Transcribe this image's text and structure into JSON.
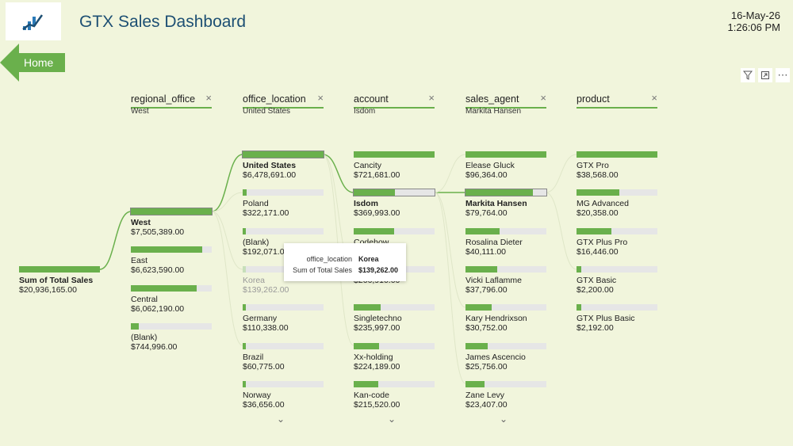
{
  "header": {
    "title": "GTX Sales Dashboard",
    "date": "16-May-26",
    "time": "1:26:06 PM",
    "home_label": "Home"
  },
  "toolbar": {
    "icons": [
      "filter-icon",
      "focus-mode-icon",
      "more-options-icon"
    ]
  },
  "tree": {
    "root": {
      "label": "Sum of Total Sales",
      "value": "$20,936,165.00"
    },
    "columns": [
      {
        "header": "regional_office",
        "selected": "West",
        "nodes": [
          {
            "label": "West",
            "value": "$7,505,389.00",
            "fill": 1.0,
            "state": "sel"
          },
          {
            "label": "East",
            "value": "$6,623,590.00",
            "fill": 0.88,
            "state": ""
          },
          {
            "label": "Central",
            "value": "$6,062,190.00",
            "fill": 0.81,
            "state": ""
          },
          {
            "label": "(Blank)",
            "value": "$744,996.00",
            "fill": 0.1,
            "state": ""
          }
        ]
      },
      {
        "header": "office_location",
        "selected": "United States",
        "nodes": [
          {
            "label": "United States",
            "value": "$6,478,691.00",
            "fill": 1.0,
            "state": "sel"
          },
          {
            "label": "Poland",
            "value": "$322,171.00",
            "fill": 0.05,
            "state": ""
          },
          {
            "label": "(Blank)",
            "value": "$192,071.00",
            "fill": 0.03,
            "state": ""
          },
          {
            "label": "Korea",
            "value": "$139,262.00",
            "fill": 0.02,
            "state": "dim"
          },
          {
            "label": "Germany",
            "value": "$110,338.00",
            "fill": 0.02,
            "state": ""
          },
          {
            "label": "Brazil",
            "value": "$60,775.00",
            "fill": 0.01,
            "state": ""
          },
          {
            "label": "Norway",
            "value": "$36,656.00",
            "fill": 0.006,
            "state": ""
          }
        ]
      },
      {
        "header": "account",
        "selected": "Isdom",
        "nodes": [
          {
            "label": "Cancity",
            "value": "$721,681.00",
            "fill": 1.0,
            "state": ""
          },
          {
            "label": "Isdom",
            "value": "$369,993.00",
            "fill": 0.51,
            "state": "sel"
          },
          {
            "label": "Codehow",
            "value": "",
            "fill": 0.5,
            "state": ""
          },
          {
            "label": "",
            "value": "$266,910.00",
            "fill": 0.37,
            "state": ""
          },
          {
            "label": "Singletechno",
            "value": "$235,997.00",
            "fill": 0.33,
            "state": ""
          },
          {
            "label": "Xx-holding",
            "value": "$224,189.00",
            "fill": 0.31,
            "state": ""
          },
          {
            "label": "Kan-code",
            "value": "$215,520.00",
            "fill": 0.3,
            "state": ""
          }
        ]
      },
      {
        "header": "sales_agent",
        "selected": "Markita Hansen",
        "nodes": [
          {
            "label": "Elease Gluck",
            "value": "$96,364.00",
            "fill": 1.0,
            "state": ""
          },
          {
            "label": "Markita Hansen",
            "value": "$79,764.00",
            "fill": 0.83,
            "state": "sel"
          },
          {
            "label": "Rosalina Dieter",
            "value": "$40,111.00",
            "fill": 0.42,
            "state": ""
          },
          {
            "label": "Vicki Laflamme",
            "value": "$37,796.00",
            "fill": 0.39,
            "state": ""
          },
          {
            "label": "Kary Hendrixson",
            "value": "$30,752.00",
            "fill": 0.32,
            "state": ""
          },
          {
            "label": "James Ascencio",
            "value": "$25,756.00",
            "fill": 0.27,
            "state": ""
          },
          {
            "label": "Zane Levy",
            "value": "$23,407.00",
            "fill": 0.24,
            "state": ""
          }
        ]
      },
      {
        "header": "product",
        "selected": "",
        "nodes": [
          {
            "label": "GTX Pro",
            "value": "$38,568.00",
            "fill": 1.0,
            "state": ""
          },
          {
            "label": "MG Advanced",
            "value": "$20,358.00",
            "fill": 0.53,
            "state": ""
          },
          {
            "label": "GTX Plus Pro",
            "value": "$16,446.00",
            "fill": 0.43,
            "state": ""
          },
          {
            "label": "GTX Basic",
            "value": "$2,200.00",
            "fill": 0.06,
            "state": ""
          },
          {
            "label": "GTX Plus Basic",
            "value": "$2,192.00",
            "fill": 0.06,
            "state": ""
          }
        ]
      }
    ]
  },
  "tooltip": {
    "row1_key": "office_location",
    "row1_val": "Korea",
    "row2_key": "Sum of Total Sales",
    "row2_val": "$139,262.00"
  },
  "colors": {
    "accent": "#6ab04c",
    "title": "#1d4f73",
    "background": "#f1f5dc"
  }
}
